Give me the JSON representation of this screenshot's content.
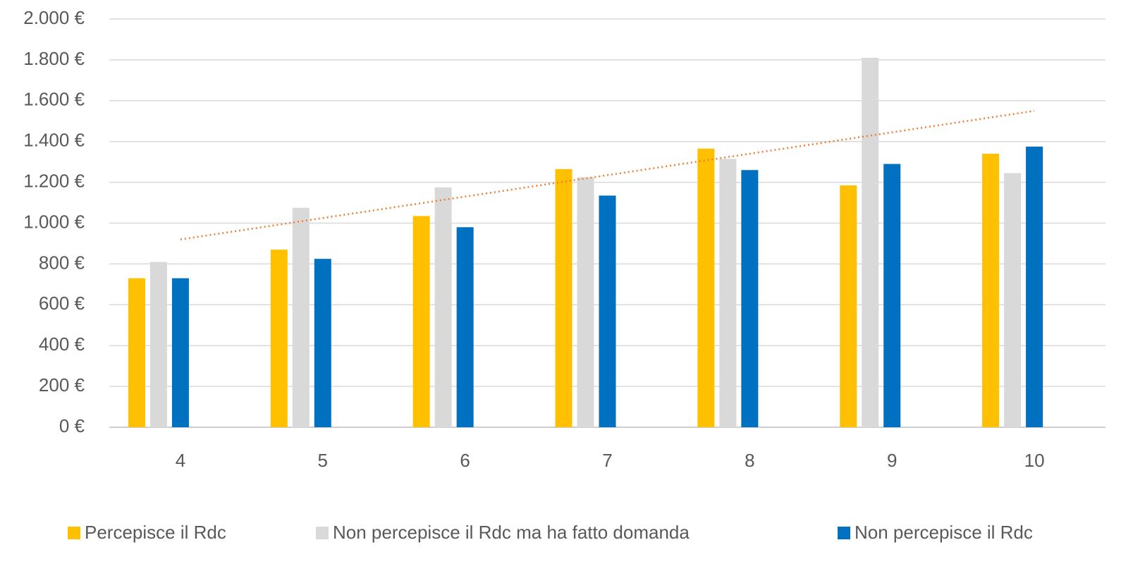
{
  "chart_data": {
    "type": "bar",
    "categories": [
      "4",
      "5",
      "6",
      "7",
      "8",
      "9",
      "10"
    ],
    "series": [
      {
        "name": "Percepisce il Rdc",
        "color": "#ffc000",
        "values": [
          730,
          870,
          1035,
          1265,
          1365,
          1185,
          1340
        ]
      },
      {
        "name": "Non percepisce il Rdc ma ha fatto domanda",
        "color": "#d9d9d9",
        "values": [
          810,
          1075,
          1175,
          1225,
          1315,
          1810,
          1245
        ]
      },
      {
        "name": "Non percepisce il Rdc",
        "color": "#0070c0",
        "values": [
          730,
          825,
          980,
          1135,
          1260,
          1290,
          1375
        ]
      }
    ],
    "trendline": {
      "color": "#ed7d31",
      "start": 920,
      "end": 1550
    },
    "ylim": [
      0,
      2000
    ],
    "yticks": [
      {
        "value": 0,
        "label": "0 €"
      },
      {
        "value": 200,
        "label": "200 €"
      },
      {
        "value": 400,
        "label": "400 €"
      },
      {
        "value": 600,
        "label": "600 €"
      },
      {
        "value": 800,
        "label": "800 €"
      },
      {
        "value": 1000,
        "label": "1.000 €"
      },
      {
        "value": 1200,
        "label": "1.200 €"
      },
      {
        "value": 1400,
        "label": "1.400 €"
      },
      {
        "value": 1600,
        "label": "1.600 €"
      },
      {
        "value": 1800,
        "label": "1.800 €"
      },
      {
        "value": 2000,
        "label": "2.000 €"
      }
    ],
    "grid": true,
    "legend": "bottom"
  }
}
